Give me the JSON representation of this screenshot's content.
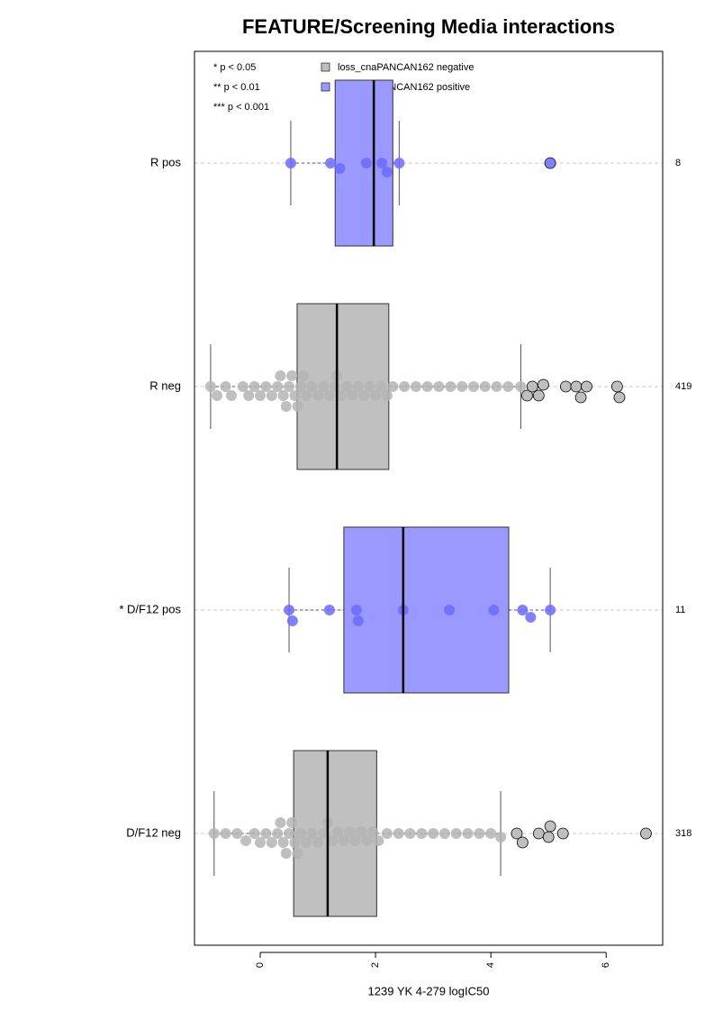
{
  "chart_data": {
    "type": "box",
    "title": "FEATURE/Screening Media interactions",
    "xlabel": "1239 YK 4-279 logIC50",
    "notes": [
      "* p < 0.05",
      "** p < 0.01",
      "*** p < 0.001"
    ],
    "legend": [
      {
        "name": "loss_cnaPANCAN162 negative",
        "color": "#bebebe"
      },
      {
        "name": "loss_cnaPANCAN162 positive",
        "color": "#9999ff"
      }
    ],
    "xlim": [
      -1.14,
      6.98
    ],
    "xticks": [
      0,
      2,
      4,
      6
    ],
    "grid": true,
    "groups": [
      {
        "label": "R pos",
        "n": 8,
        "box_color": "#9999ff",
        "point_color": "#6b6bff",
        "whisker_low": 0.53,
        "q1": 1.3,
        "median": 1.97,
        "q3": 2.3,
        "whisker_high": 2.41,
        "points": [
          0.53,
          1.22,
          1.38,
          1.84,
          2.11,
          2.2,
          2.41
        ],
        "outliers": [
          5.03
        ]
      },
      {
        "label": "R neg",
        "n": 419,
        "box_color": "#c0c0c0",
        "point_color": "#b4b4b4",
        "whisker_low": -0.86,
        "q1": 0.64,
        "median": 1.33,
        "q3": 2.23,
        "whisker_high": 4.52,
        "points": [
          -0.86,
          -0.75,
          -0.6,
          -0.5,
          -0.3,
          -0.2,
          -0.1,
          0,
          0.1,
          0.2,
          0.3,
          0.35,
          0.4,
          0.45,
          0.5,
          0.55,
          0.6,
          0.65,
          0.7,
          0.75,
          0.8,
          0.9,
          1.0,
          1.1,
          1.2,
          1.3,
          1.33,
          1.4,
          1.5,
          1.6,
          1.7,
          1.8,
          1.9,
          2.0,
          2.1,
          2.2,
          2.3,
          2.5,
          2.7,
          2.9,
          3.1,
          3.3,
          3.5,
          3.7,
          3.9,
          4.1,
          4.3,
          4.52
        ],
        "outliers": [
          4.63,
          4.72,
          4.83,
          4.91,
          5.3,
          5.48,
          5.56,
          5.66,
          6.19,
          6.23
        ]
      },
      {
        "label": "* D/F12 pos",
        "n": 11,
        "box_color": "#9999ff",
        "point_color": "#6b6bff",
        "whisker_low": 0.5,
        "q1": 1.45,
        "median": 2.48,
        "q3": 4.31,
        "whisker_high": 5.03,
        "points": [
          0.5,
          0.56,
          1.2,
          1.67,
          1.7,
          2.48,
          3.28,
          4.05,
          4.55,
          4.69,
          5.03
        ],
        "outliers": []
      },
      {
        "label": "D/F12 neg",
        "n": 318,
        "box_color": "#c0c0c0",
        "point_color": "#b4b4b4",
        "whisker_low": -0.8,
        "q1": 0.58,
        "median": 1.17,
        "q3": 2.02,
        "whisker_high": 4.17,
        "points": [
          -0.8,
          -0.6,
          -0.4,
          -0.25,
          -0.1,
          0,
          0.1,
          0.2,
          0.3,
          0.35,
          0.4,
          0.45,
          0.5,
          0.55,
          0.6,
          0.65,
          0.7,
          0.8,
          0.9,
          1.0,
          1.1,
          1.17,
          1.25,
          1.35,
          1.45,
          1.55,
          1.65,
          1.75,
          1.85,
          1.95,
          2.05,
          2.2,
          2.4,
          2.6,
          2.8,
          3.0,
          3.2,
          3.4,
          3.6,
          3.8,
          4.0,
          4.17
        ],
        "outliers": [
          4.45,
          4.55,
          4.83,
          5.0,
          5.03,
          5.25,
          6.69
        ]
      }
    ]
  }
}
